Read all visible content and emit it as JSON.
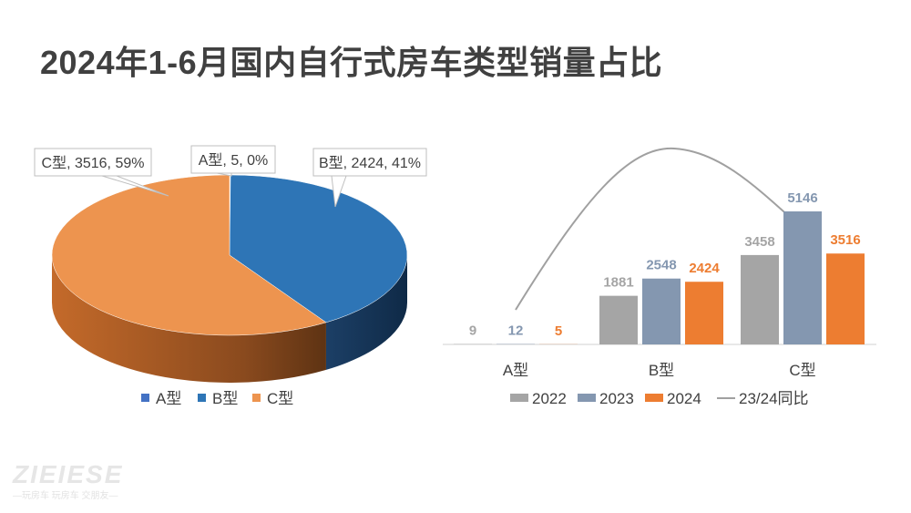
{
  "title": "2024年1-6月国内自行式房车类型销量占比",
  "watermark": {
    "logo": "ZIEIESE",
    "tagline": "—玩房车 玩房车 交朋友—"
  },
  "colors": {
    "A": "#4472c4",
    "B": "#2e75b6",
    "C": "#ed944f",
    "y2022": "#a5a5a5",
    "y2023": "#8497b0",
    "y2024": "#ed7d31",
    "line": "#a0a0a0"
  },
  "chart_data": [
    {
      "type": "pie",
      "categories": [
        "A型",
        "B型",
        "C型"
      ],
      "values": [
        5,
        2424,
        3516
      ],
      "data_labels": [
        "A型, 5, 0%",
        "B型, 2424, 41%",
        "C型, 3516, 59%"
      ],
      "legend": [
        "A型",
        "B型",
        "C型"
      ],
      "legend_position": "bottom"
    },
    {
      "type": "bar",
      "categories": [
        "A型",
        "B型",
        "C型"
      ],
      "series": [
        {
          "name": "2022",
          "values": [
            9,
            1881,
            3458
          ]
        },
        {
          "name": "2023",
          "values": [
            12,
            2548,
            5146
          ]
        },
        {
          "name": "2024",
          "values": [
            5,
            2424,
            3516
          ]
        }
      ],
      "line_series": {
        "name": "23/24同比"
      },
      "legend": [
        "2022",
        "2023",
        "2024",
        "23/24同比"
      ],
      "legend_position": "bottom"
    }
  ]
}
